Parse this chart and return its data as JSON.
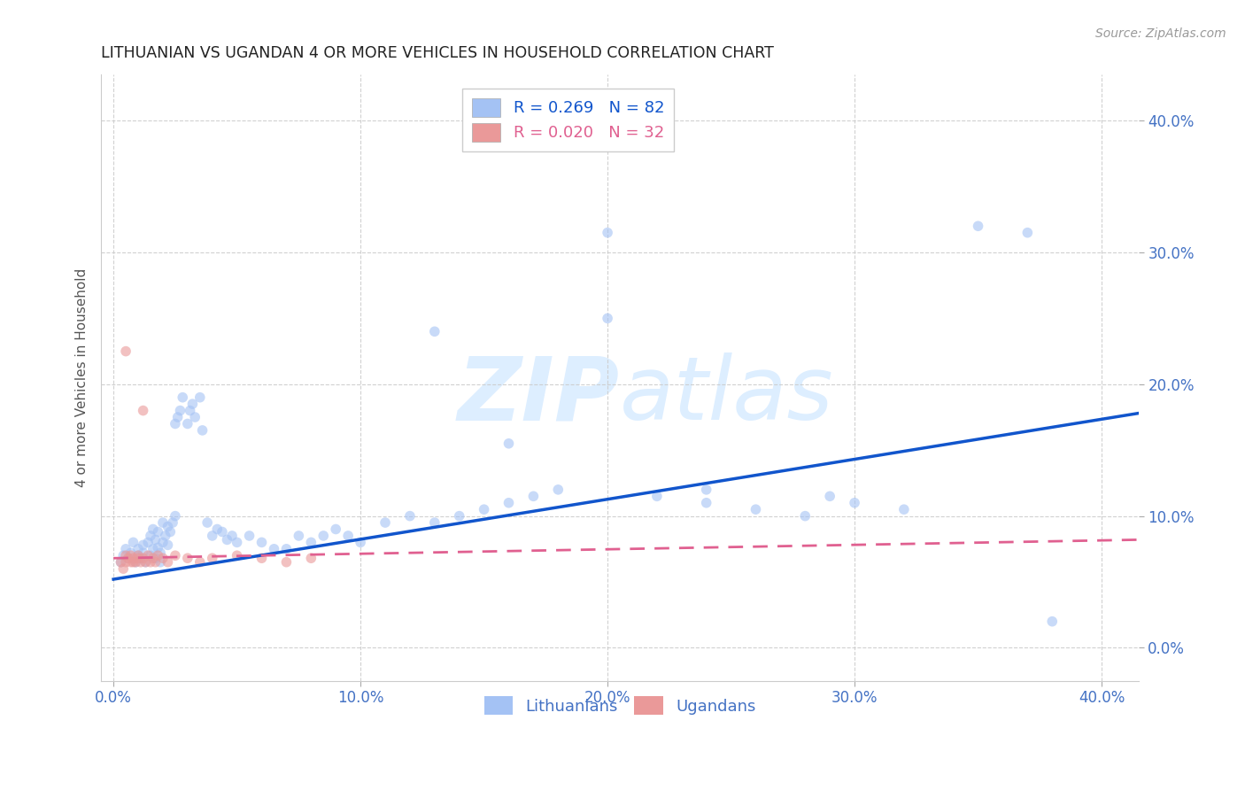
{
  "title": "LITHUANIAN VS UGANDAN 4 OR MORE VEHICLES IN HOUSEHOLD CORRELATION CHART",
  "source": "Source: ZipAtlas.com",
  "ylabel": "4 or more Vehicles in Household",
  "x_tick_vals": [
    0.0,
    0.1,
    0.2,
    0.3,
    0.4
  ],
  "y_tick_vals": [
    0.0,
    0.1,
    0.2,
    0.3,
    0.4
  ],
  "x_tick_labels": [
    "0.0%",
    "10.0%",
    "20.0%",
    "30.0%",
    "40.0%"
  ],
  "y_tick_labels": [
    "0.0%",
    "10.0%",
    "20.0%",
    "30.0%",
    "40.0%"
  ],
  "xlim": [
    -0.005,
    0.415
  ],
  "ylim": [
    -0.025,
    0.435
  ],
  "legend_entries": [
    {
      "label": "R = 0.269   N = 82",
      "color": "#a4c2f4"
    },
    {
      "label": "R = 0.020   N = 32",
      "color": "#ea9999"
    }
  ],
  "legend_labels": [
    "Lithuanians",
    "Ugandans"
  ],
  "blue_scatter_x": [
    0.003,
    0.004,
    0.005,
    0.006,
    0.007,
    0.008,
    0.009,
    0.01,
    0.01,
    0.011,
    0.012,
    0.012,
    0.013,
    0.014,
    0.015,
    0.015,
    0.016,
    0.016,
    0.017,
    0.017,
    0.018,
    0.018,
    0.019,
    0.019,
    0.02,
    0.02,
    0.021,
    0.022,
    0.022,
    0.023,
    0.024,
    0.025,
    0.025,
    0.026,
    0.027,
    0.028,
    0.03,
    0.031,
    0.032,
    0.033,
    0.035,
    0.036,
    0.038,
    0.04,
    0.042,
    0.044,
    0.046,
    0.048,
    0.05,
    0.055,
    0.06,
    0.065,
    0.07,
    0.075,
    0.08,
    0.085,
    0.09,
    0.095,
    0.1,
    0.11,
    0.12,
    0.13,
    0.14,
    0.15,
    0.16,
    0.17,
    0.18,
    0.2,
    0.22,
    0.24,
    0.26,
    0.28,
    0.3,
    0.32,
    0.35,
    0.37,
    0.2,
    0.13,
    0.16,
    0.24,
    0.29,
    0.38
  ],
  "blue_scatter_y": [
    0.065,
    0.07,
    0.075,
    0.068,
    0.072,
    0.08,
    0.065,
    0.07,
    0.075,
    0.068,
    0.072,
    0.078,
    0.065,
    0.08,
    0.07,
    0.085,
    0.075,
    0.09,
    0.068,
    0.082,
    0.076,
    0.088,
    0.072,
    0.065,
    0.08,
    0.095,
    0.085,
    0.078,
    0.092,
    0.088,
    0.095,
    0.1,
    0.17,
    0.175,
    0.18,
    0.19,
    0.17,
    0.18,
    0.185,
    0.175,
    0.19,
    0.165,
    0.095,
    0.085,
    0.09,
    0.088,
    0.082,
    0.085,
    0.08,
    0.085,
    0.08,
    0.075,
    0.075,
    0.085,
    0.08,
    0.085,
    0.09,
    0.085,
    0.08,
    0.095,
    0.1,
    0.095,
    0.1,
    0.105,
    0.11,
    0.115,
    0.12,
    0.25,
    0.115,
    0.11,
    0.105,
    0.1,
    0.11,
    0.105,
    0.32,
    0.315,
    0.315,
    0.24,
    0.155,
    0.12,
    0.115,
    0.02
  ],
  "pink_scatter_x": [
    0.003,
    0.004,
    0.005,
    0.005,
    0.006,
    0.007,
    0.007,
    0.008,
    0.008,
    0.009,
    0.01,
    0.01,
    0.011,
    0.012,
    0.013,
    0.014,
    0.015,
    0.016,
    0.017,
    0.018,
    0.02,
    0.022,
    0.025,
    0.03,
    0.035,
    0.04,
    0.05,
    0.06,
    0.07,
    0.08,
    0.005,
    0.012
  ],
  "pink_scatter_y": [
    0.065,
    0.06,
    0.065,
    0.07,
    0.068,
    0.065,
    0.07,
    0.065,
    0.068,
    0.065,
    0.068,
    0.07,
    0.065,
    0.068,
    0.065,
    0.07,
    0.065,
    0.068,
    0.065,
    0.07,
    0.068,
    0.065,
    0.07,
    0.068,
    0.065,
    0.068,
    0.07,
    0.068,
    0.065,
    0.068,
    0.225,
    0.18
  ],
  "blue_line_x": [
    0.0,
    0.415
  ],
  "blue_line_y": [
    0.052,
    0.178
  ],
  "pink_line_x": [
    0.0,
    0.415
  ],
  "pink_line_y": [
    0.068,
    0.082
  ],
  "scatter_alpha": 0.6,
  "scatter_size": 70,
  "blue_color": "#a4c2f4",
  "pink_color": "#ea9999",
  "blue_line_color": "#1155cc",
  "pink_line_color": "#e06090",
  "grid_color": "#cccccc",
  "title_color": "#222222",
  "axis_label_color": "#555555",
  "tick_color": "#4472c4",
  "source_color": "#999999",
  "bg_color": "#ffffff",
  "watermark_color": "#ddeeff"
}
